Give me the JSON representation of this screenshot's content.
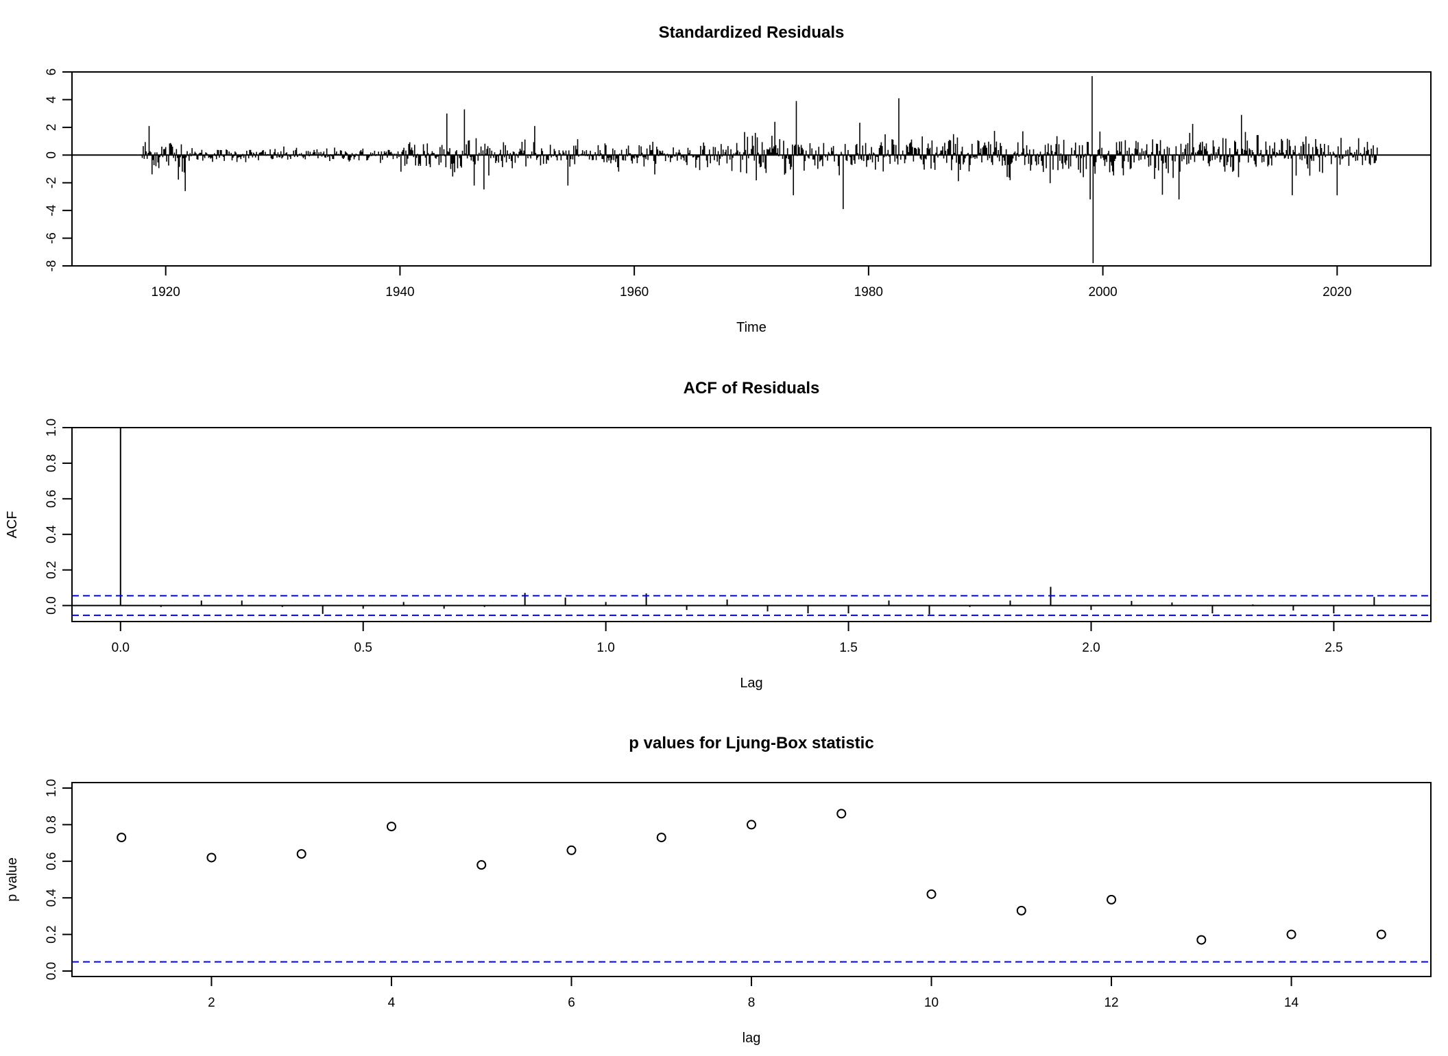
{
  "chart_data": [
    {
      "type": "line",
      "title": "Standardized Residuals",
      "xlabel": "Time",
      "ylabel": "",
      "xlim": [
        1912,
        2028
      ],
      "ylim": [
        -8,
        6
      ],
      "xticks": [
        1920,
        1940,
        1960,
        1980,
        2000,
        2020
      ],
      "yticks": [
        -8,
        -6,
        -4,
        -2,
        0,
        2,
        4,
        6
      ],
      "style": "vertical-lines (type h) with horizontal reference line at 0",
      "time_range": [
        1918.0,
        2023.4
      ],
      "frequency": 12,
      "notable_values": [
        {
          "time": 1918.6,
          "value": 2.1
        },
        {
          "time": 1921.7,
          "value": -2.6
        },
        {
          "time": 1944.0,
          "value": 3.0
        },
        {
          "time": 1945.5,
          "value": 3.3
        },
        {
          "time": 1946.3,
          "value": -2.2
        },
        {
          "time": 1951.5,
          "value": 2.1
        },
        {
          "time": 1954.3,
          "value": -2.2
        },
        {
          "time": 1972.0,
          "value": 2.4
        },
        {
          "time": 1973.8,
          "value": 3.9
        },
        {
          "time": 1973.6,
          "value": -2.9
        },
        {
          "time": 1977.8,
          "value": -3.9
        },
        {
          "time": 1982.6,
          "value": 4.1
        },
        {
          "time": 1998.9,
          "value": -3.2
        },
        {
          "time": 1999.1,
          "value": 5.7
        },
        {
          "time": 1999.2,
          "value": -7.8
        },
        {
          "time": 2006.5,
          "value": -3.2
        },
        {
          "time": 2011.8,
          "value": 2.9
        },
        {
          "time": 2016.2,
          "value": -2.9
        },
        {
          "time": 2020.0,
          "value": -2.9
        }
      ]
    },
    {
      "type": "bar",
      "title": "ACF of Residuals",
      "xlabel": "Lag",
      "ylabel": "ACF",
      "xlim": [
        -0.1,
        2.7
      ],
      "ylim": [
        -0.09,
        1.0
      ],
      "xticks": [
        0.0,
        0.5,
        1.0,
        1.5,
        2.0,
        2.5
      ],
      "ytick_labels": [
        "0.0",
        "0.2",
        "0.4",
        "0.6",
        "0.8",
        "1.0"
      ],
      "yticks": [
        0.0,
        0.2,
        0.4,
        0.6,
        0.8,
        1.0
      ],
      "xtick_labels": [
        "0.0",
        "0.5",
        "1.0",
        "1.5",
        "2.0",
        "2.5"
      ],
      "lag_step": 0.08333,
      "values": [
        1.0,
        -0.008,
        0.028,
        0.028,
        -0.008,
        -0.047,
        -0.018,
        0.02,
        -0.018,
        -0.008,
        0.071,
        0.045,
        0.02,
        0.068,
        -0.025,
        0.034,
        -0.033,
        -0.044,
        -0.044,
        0.028,
        -0.05,
        -0.008,
        0.028,
        0.105,
        -0.025,
        0.026,
        0.017,
        -0.044,
        0.006,
        -0.028,
        -0.044,
        0.048
      ],
      "confidence_bound": 0.055,
      "bound_color": "#0000ff"
    },
    {
      "type": "scatter",
      "title": "p values for Ljung-Box statistic",
      "xlabel": "lag",
      "ylabel": "p value",
      "xlim": [
        0.45,
        15.55
      ],
      "ylim": [
        -0.03,
        1.03
      ],
      "xticks": [
        2,
        4,
        6,
        8,
        10,
        12,
        14
      ],
      "yticks": [
        0.0,
        0.2,
        0.4,
        0.6,
        0.8,
        1.0
      ],
      "ytick_labels": [
        "0.0",
        "0.2",
        "0.4",
        "0.6",
        "0.8",
        "1.0"
      ],
      "x": [
        1,
        2,
        3,
        4,
        5,
        6,
        7,
        8,
        9,
        10,
        11,
        12,
        13,
        14,
        15
      ],
      "y": [
        0.73,
        0.62,
        0.64,
        0.79,
        0.58,
        0.66,
        0.73,
        0.8,
        0.86,
        0.42,
        0.33,
        0.39,
        0.17,
        0.2,
        0.2
      ],
      "reference_line": 0.05,
      "reference_color": "#0000ff",
      "marker": "open-circle"
    }
  ]
}
